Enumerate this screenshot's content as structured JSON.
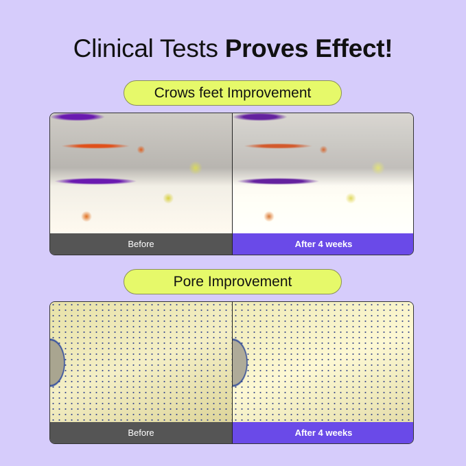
{
  "title": {
    "regular": "Clinical Tests ",
    "bold": "Proves Effect!"
  },
  "sections": [
    {
      "heading": "Crows feet Improvement",
      "before_label": "Before",
      "after_label": "After 4 weeks"
    },
    {
      "heading": "Pore Improvement",
      "before_label": "Before",
      "after_label": "After 4 weeks"
    }
  ],
  "colors": {
    "background": "#d6ccfb",
    "pill": "#e6f96a",
    "before_bar": "#555555",
    "after_bar": "#6a4ae8"
  }
}
